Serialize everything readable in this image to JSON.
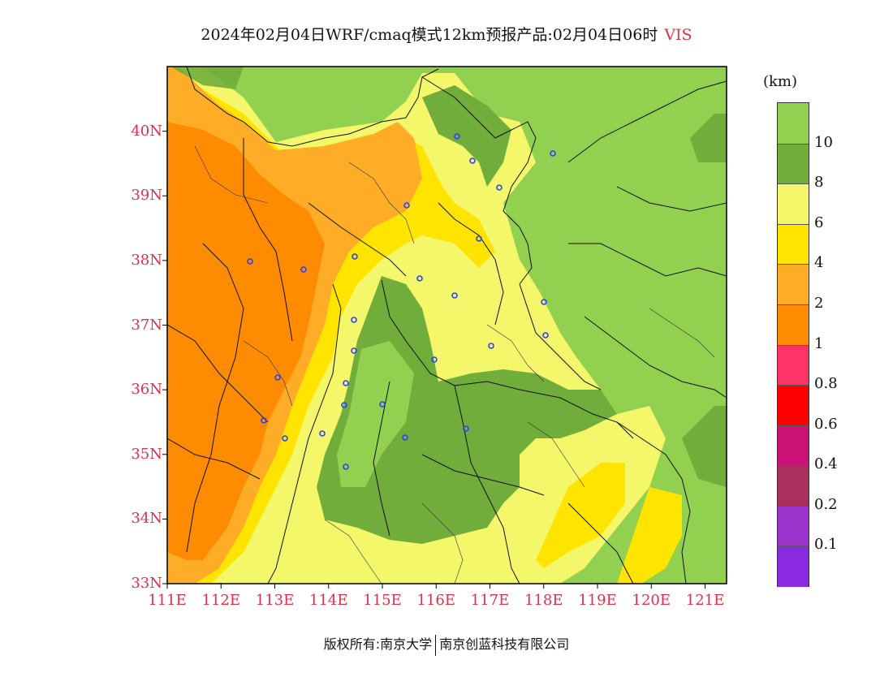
{
  "title": {
    "text": "2024年02月04日WRF/cmaq模式12km预报产品:02月04日06时",
    "variable": "VIS"
  },
  "map": {
    "lat_ticks": [
      "40N",
      "39N",
      "38N",
      "37N",
      "36N",
      "35N",
      "34N",
      "33N"
    ],
    "lon_ticks": [
      "111E",
      "112E",
      "113E",
      "114E",
      "115E",
      "116E",
      "117E",
      "118E",
      "119E",
      "120E",
      "121E"
    ],
    "extent": {
      "lon_min": 111,
      "lon_max": 121.4,
      "lat_min": 33,
      "lat_max": 41
    },
    "city_marker_color": "#2a40ff",
    "city_count": 27
  },
  "legend": {
    "unit": "(km)",
    "labels": [
      "10",
      "8",
      "6",
      "4",
      "2",
      "1",
      "0.8",
      "0.6",
      "0.4",
      "0.2",
      "0.1"
    ],
    "colors": [
      "#92d050",
      "#70ad3a",
      "#f4f76a",
      "#ffe400",
      "#ffad26",
      "#ff8c00",
      "#ff3366",
      "#ff0000",
      "#cc1177",
      "#aa2f5f",
      "#9933cc",
      "#8a2be2"
    ]
  },
  "footer": {
    "left": "版权所有:南京大学",
    "right": "南京创蓝科技有限公司"
  }
}
